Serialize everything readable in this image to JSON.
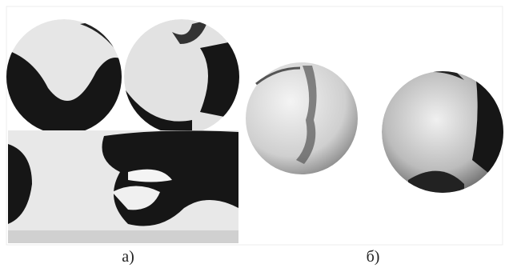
{
  "figure": {
    "panels": [
      {
        "label": "а)"
      },
      {
        "label": "б)"
      }
    ]
  }
}
